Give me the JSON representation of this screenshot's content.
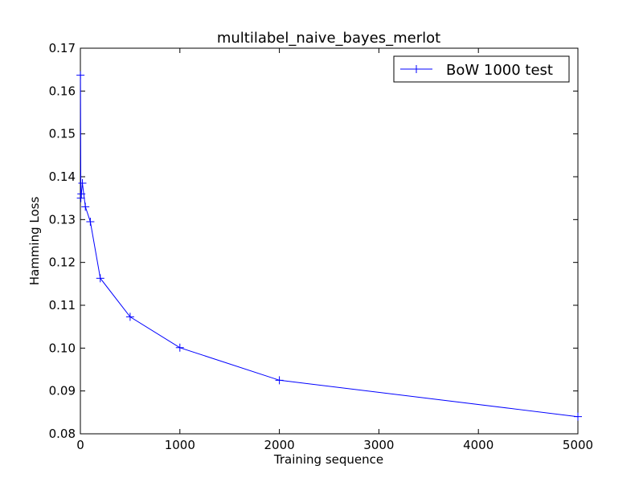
{
  "chart_data": {
    "type": "line",
    "title": "multilabel_naive_bayes_merlot",
    "xlabel": "Training sequence",
    "ylabel": "Hamming Loss",
    "xlim": [
      0,
      5000
    ],
    "ylim": [
      0.08,
      0.17
    ],
    "x_ticks": [
      "0",
      "1000",
      "2000",
      "3000",
      "4000",
      "5000"
    ],
    "y_ticks": [
      "0.08",
      "0.09",
      "0.10",
      "0.11",
      "0.12",
      "0.13",
      "0.14",
      "0.15",
      "0.16",
      "0.17"
    ],
    "grid": false,
    "legend_position": "top-right",
    "series": [
      {
        "name": "BoW 1000 test",
        "color": "#0000ff",
        "marker": "+",
        "x": [
          1,
          5,
          10,
          20,
          50,
          100,
          200,
          500,
          1000,
          2000,
          5000
        ],
        "y": [
          0.1637,
          0.135,
          0.136,
          0.1385,
          0.133,
          0.1295,
          0.1163,
          0.1073,
          0.1001,
          0.0925,
          0.084
        ]
      }
    ]
  }
}
